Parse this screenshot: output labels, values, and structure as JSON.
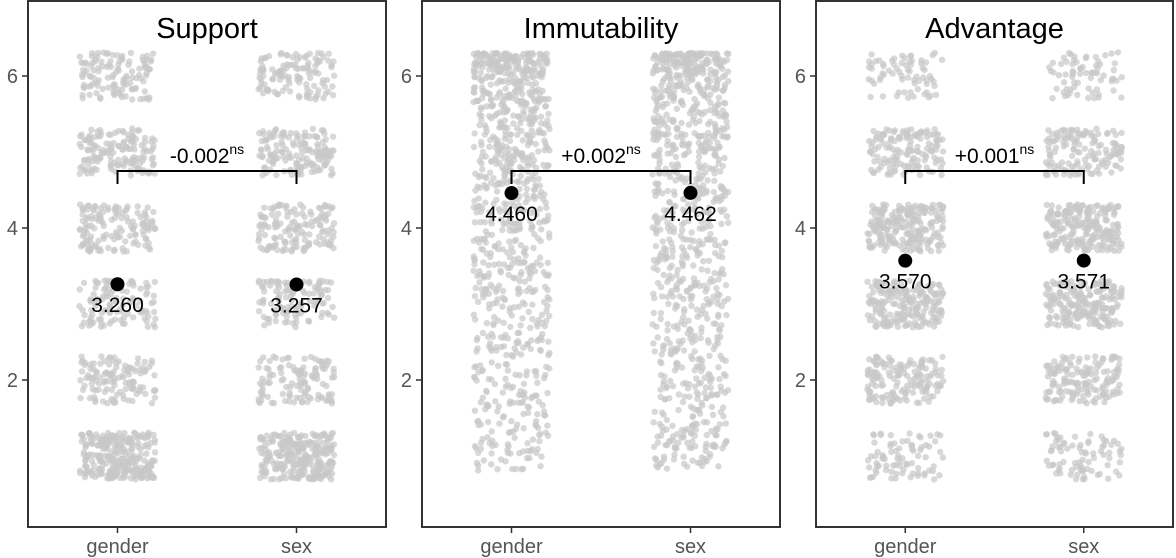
{
  "chart_data": [
    {
      "type": "scatter",
      "title": "Support",
      "categories": [
        "gender",
        "sex"
      ],
      "ylim": [
        0.6,
        6.7
      ],
      "yticks": [
        2,
        4,
        6
      ],
      "distribution": "discrete",
      "means": [
        3.26,
        3.257
      ],
      "mean_labels": [
        "3.260",
        "3.257"
      ],
      "ci_halfwidth": 0.09,
      "difference": {
        "label": "-0.002",
        "significance": "ns",
        "y": 4.75
      }
    },
    {
      "type": "scatter",
      "title": "Immutability",
      "categories": [
        "gender",
        "sex"
      ],
      "ylim": [
        0.6,
        6.7
      ],
      "yticks": [
        2,
        4,
        6
      ],
      "distribution": "continuous",
      "means": [
        4.46,
        4.462
      ],
      "mean_labels": [
        "4.460",
        "4.462"
      ],
      "ci_halfwidth": 0.07,
      "difference": {
        "label": "+0.002",
        "significance": "ns",
        "y": 4.75
      }
    },
    {
      "type": "scatter",
      "title": "Advantage",
      "categories": [
        "gender",
        "sex"
      ],
      "ylim": [
        0.6,
        6.7
      ],
      "yticks": [
        2,
        4,
        6
      ],
      "distribution": "discrete",
      "means": [
        3.57,
        3.571
      ],
      "mean_labels": [
        "3.570",
        "3.571"
      ],
      "ci_halfwidth": 0.07,
      "difference": {
        "label": "+0.001",
        "significance": "ns",
        "y": 4.75
      }
    }
  ]
}
